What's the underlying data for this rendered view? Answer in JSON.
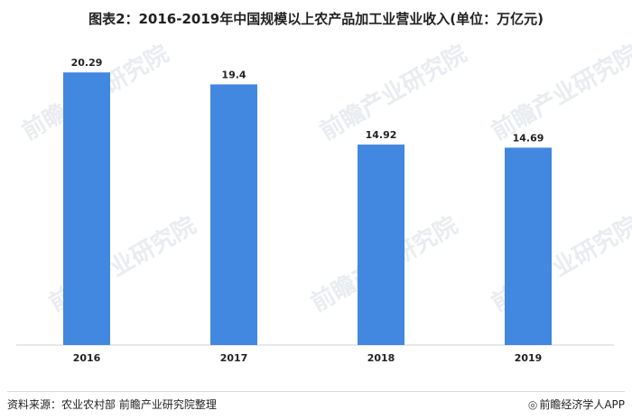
{
  "chart_data": {
    "type": "bar",
    "title": "图表2：2016-2019年中国规模以上农产品加工业营业收入(单位：万亿元)",
    "categories": [
      "2016",
      "2017",
      "2018",
      "2019"
    ],
    "values": [
      20.29,
      19.4,
      14.92,
      14.69
    ],
    "value_labels": [
      "20.29",
      "19.4",
      "14.92",
      "14.69"
    ],
    "ylim": [
      0,
      24
    ],
    "bar_color": "#4287e0",
    "grid": false,
    "legend": "none"
  },
  "footer": {
    "source": "资料来源：农业农村部 前瞻产业研究院整理",
    "brand_icon": "eye-icon",
    "brand": "前瞻经济学人APP"
  },
  "watermark": {
    "text": "前瞻产业研究院"
  }
}
